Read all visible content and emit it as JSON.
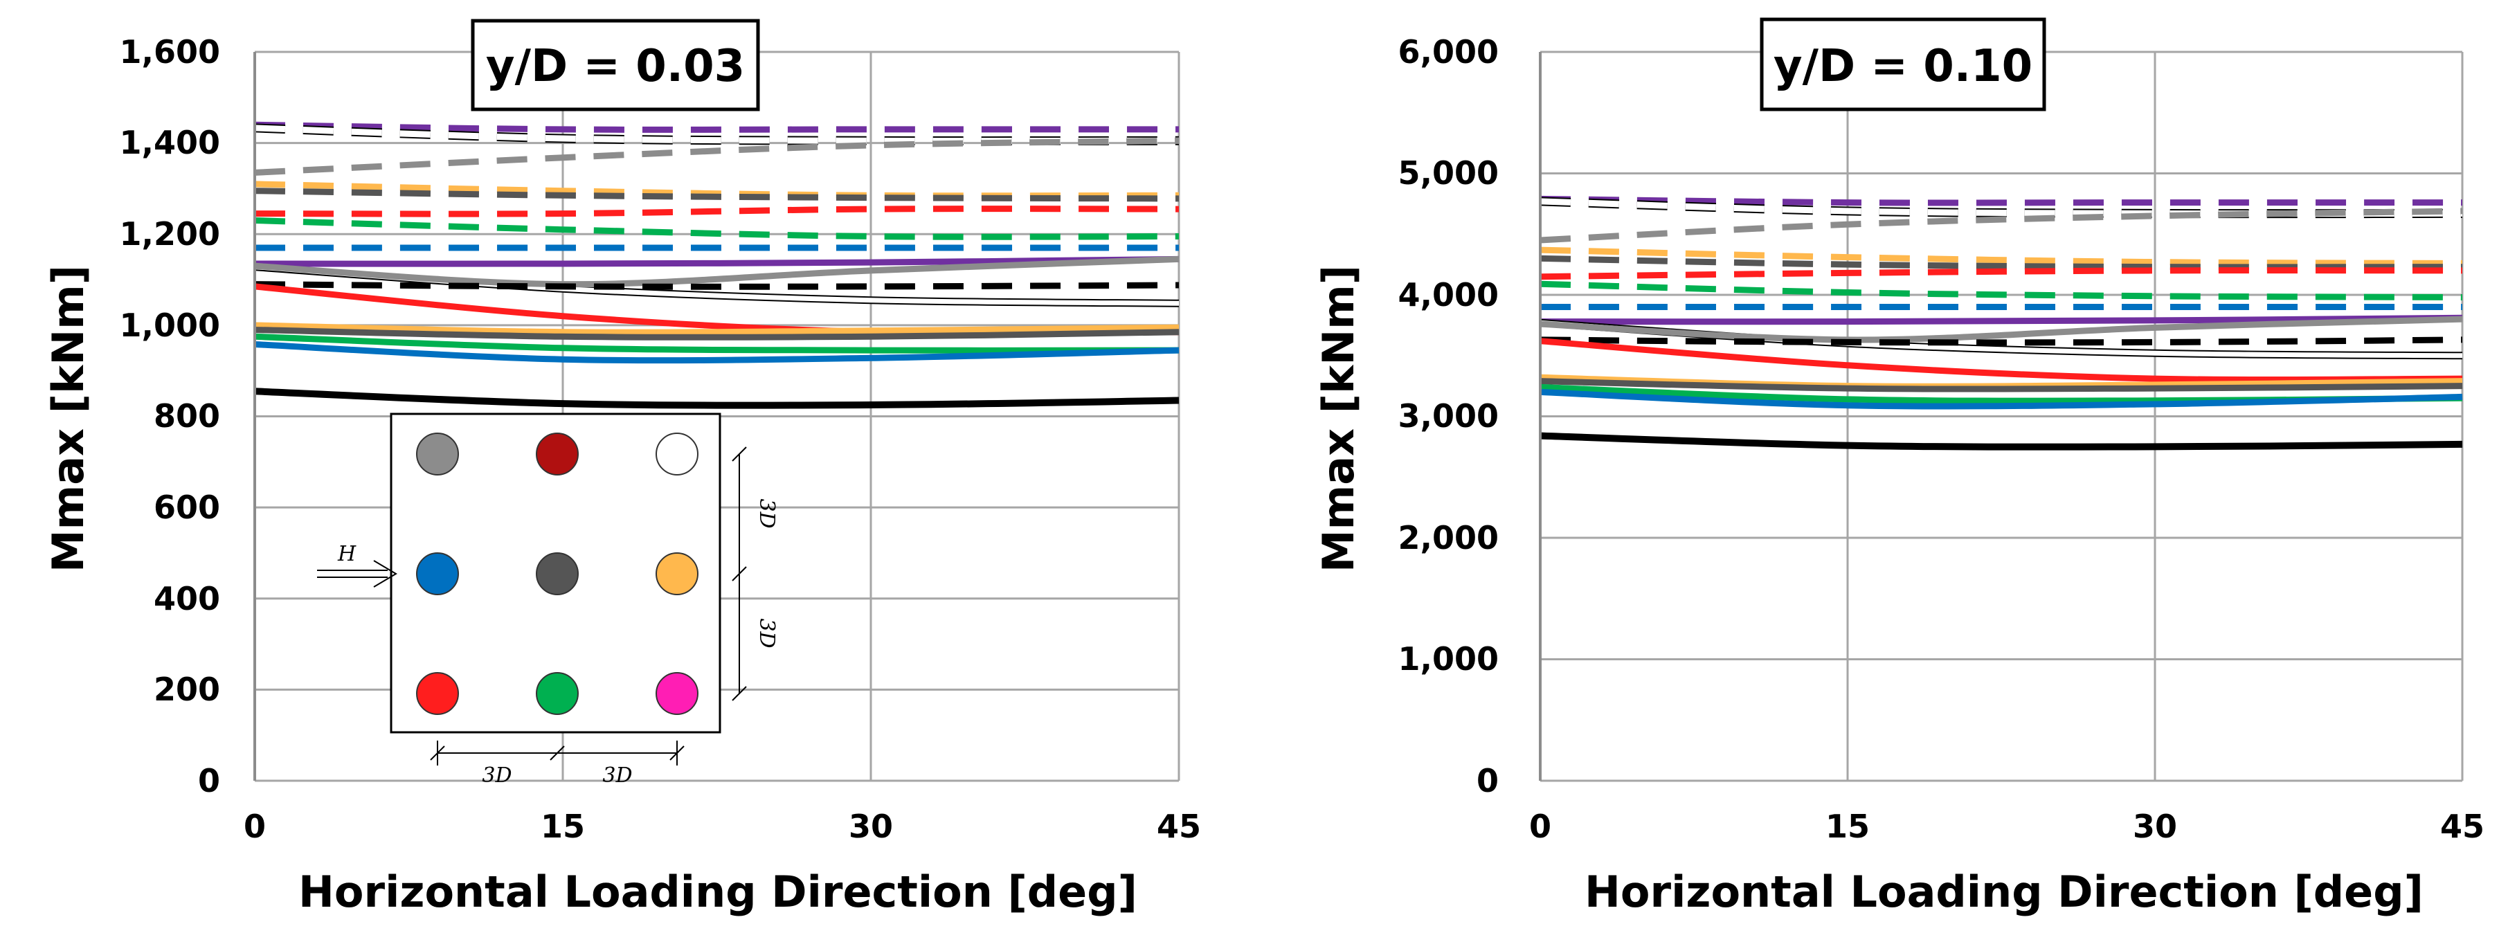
{
  "colors": {
    "purple": "#7030a0",
    "black": "#000000",
    "grey": "#8c8c8c",
    "darkgrey": "#555555",
    "orange": "#ffb84d",
    "red": "#ff1e1e",
    "green": "#00b050",
    "blue": "#0070c0",
    "darkred": "#b01010",
    "magenta": "#ff1eb4"
  },
  "chart_data": [
    {
      "type": "line",
      "title": "y/D = 0.03",
      "xlabel": "Horizontal Loading Direction [deg]",
      "ylabel": "Mmax [kNm]",
      "xlim": [
        0,
        45
      ],
      "ylim": [
        0,
        1600
      ],
      "x_ticks": [
        0,
        15,
        30,
        45
      ],
      "x_tick_labels": [
        "0",
        "15",
        "30",
        "45"
      ],
      "y_ticks": [
        0,
        200,
        400,
        600,
        800,
        1000,
        1200,
        1400,
        1600
      ],
      "y_tick_labels": [
        "0",
        "200",
        "400",
        "600",
        "800",
        "1,000",
        "1,200",
        "1,400",
        "1,600"
      ],
      "grid": true,
      "x": [
        0,
        15,
        30,
        45
      ],
      "series": [
        {
          "name": "dashed-purple",
          "color": "purple",
          "style": "dashed",
          "width": 9,
          "values": [
            1440,
            1430,
            1430,
            1430
          ]
        },
        {
          "name": "dashed-white",
          "color": "white",
          "style": "dashed-outline",
          "width": 9,
          "values": [
            1433,
            1410,
            1405,
            1405
          ]
        },
        {
          "name": "dashed-grey",
          "color": "grey",
          "style": "dashed",
          "width": 9,
          "values": [
            1335,
            1368,
            1395,
            1405
          ]
        },
        {
          "name": "dashed-orange",
          "color": "orange",
          "style": "dashed",
          "width": 9,
          "values": [
            1310,
            1295,
            1285,
            1285
          ]
        },
        {
          "name": "dashed-darkgrey",
          "color": "darkgrey",
          "style": "dashed",
          "width": 9,
          "values": [
            1295,
            1285,
            1280,
            1278
          ]
        },
        {
          "name": "dashed-red",
          "color": "red",
          "style": "dashed",
          "width": 9,
          "values": [
            1245,
            1245,
            1255,
            1255
          ]
        },
        {
          "name": "dashed-green",
          "color": "green",
          "style": "dashed",
          "width": 9,
          "values": [
            1230,
            1210,
            1195,
            1195
          ]
        },
        {
          "name": "dashed-blue",
          "color": "blue",
          "style": "dashed",
          "width": 9,
          "values": [
            1170,
            1170,
            1170,
            1170
          ]
        },
        {
          "name": "solid-purple",
          "color": "purple",
          "style": "solid",
          "width": 9,
          "values": [
            1135,
            1135,
            1138,
            1145
          ]
        },
        {
          "name": "solid-white",
          "color": "white",
          "style": "solid-outline",
          "width": 7,
          "values": [
            1128,
            1080,
            1055,
            1048
          ]
        },
        {
          "name": "solid-grey",
          "color": "grey",
          "style": "solid",
          "width": 9,
          "values": [
            1130,
            1090,
            1120,
            1145
          ]
        },
        {
          "name": "dashed-black",
          "color": "black",
          "style": "dashed",
          "width": 9,
          "values": [
            1090,
            1085,
            1085,
            1088
          ]
        },
        {
          "name": "solid-red",
          "color": "red",
          "style": "solid",
          "width": 9,
          "values": [
            1085,
            1020,
            985,
            985
          ]
        },
        {
          "name": "solid-orange",
          "color": "orange",
          "style": "solid",
          "width": 9,
          "values": [
            1000,
            985,
            988,
            995
          ]
        },
        {
          "name": "solid-darkgrey",
          "color": "darkgrey",
          "style": "solid",
          "width": 9,
          "values": [
            990,
            975,
            975,
            985
          ]
        },
        {
          "name": "solid-green",
          "color": "green",
          "style": "solid",
          "width": 9,
          "values": [
            975,
            950,
            945,
            945
          ]
        },
        {
          "name": "solid-blue",
          "color": "blue",
          "style": "solid",
          "width": 9,
          "values": [
            958,
            925,
            928,
            945
          ]
        },
        {
          "name": "solid-black",
          "color": "black",
          "style": "solid",
          "width": 10,
          "values": [
            855,
            828,
            825,
            835
          ]
        }
      ],
      "inset": {
        "load_label": "H",
        "spacing_label": "3D",
        "piles": [
          {
            "name": "pile-top-left",
            "color": "grey"
          },
          {
            "name": "pile-top-middle",
            "color": "darkred"
          },
          {
            "name": "pile-top-right",
            "color": "white"
          },
          {
            "name": "pile-middle-left",
            "color": "blue"
          },
          {
            "name": "pile-center",
            "color": "darkgrey"
          },
          {
            "name": "pile-middle-right",
            "color": "orange"
          },
          {
            "name": "pile-bottom-left",
            "color": "red"
          },
          {
            "name": "pile-bottom-middle",
            "color": "green"
          },
          {
            "name": "pile-bottom-right",
            "color": "magenta"
          }
        ]
      }
    },
    {
      "type": "line",
      "title": "y/D = 0.10",
      "xlabel": "Horizontal Loading Direction [deg]",
      "ylabel": "Mmax [kNm]",
      "xlim": [
        0,
        45
      ],
      "ylim": [
        0,
        6000
      ],
      "x_ticks": [
        0,
        15,
        30,
        45
      ],
      "x_tick_labels": [
        "0",
        "15",
        "30",
        "45"
      ],
      "y_ticks": [
        0,
        1000,
        2000,
        3000,
        4000,
        5000,
        6000
      ],
      "y_tick_labels": [
        "0",
        "1,000",
        "2,000",
        "3,000",
        "4,000",
        "5,000",
        "6,000"
      ],
      "grid": true,
      "x": [
        0,
        15,
        30,
        45
      ],
      "series": [
        {
          "name": "dashed-purple",
          "color": "purple",
          "style": "dashed",
          "width": 9,
          "values": [
            4790,
            4760,
            4760,
            4760
          ]
        },
        {
          "name": "dashed-white",
          "color": "white",
          "style": "dashed-outline",
          "width": 9,
          "values": [
            4770,
            4690,
            4670,
            4670
          ]
        },
        {
          "name": "dashed-grey",
          "color": "grey",
          "style": "dashed",
          "width": 9,
          "values": [
            4450,
            4580,
            4650,
            4690
          ]
        },
        {
          "name": "dashed-orange",
          "color": "orange",
          "style": "dashed",
          "width": 9,
          "values": [
            4370,
            4310,
            4270,
            4260
          ]
        },
        {
          "name": "dashed-darkgrey",
          "color": "darkgrey",
          "style": "dashed",
          "width": 9,
          "values": [
            4300,
            4250,
            4230,
            4230
          ]
        },
        {
          "name": "dashed-red",
          "color": "red",
          "style": "dashed",
          "width": 9,
          "values": [
            4150,
            4180,
            4200,
            4200
          ]
        },
        {
          "name": "dashed-green",
          "color": "green",
          "style": "dashed",
          "width": 9,
          "values": [
            4090,
            4020,
            3990,
            3980
          ]
        },
        {
          "name": "dashed-blue",
          "color": "blue",
          "style": "dashed",
          "width": 9,
          "values": [
            3900,
            3900,
            3900,
            3900
          ]
        },
        {
          "name": "solid-purple",
          "color": "purple",
          "style": "solid",
          "width": 9,
          "values": [
            3780,
            3780,
            3790,
            3810
          ]
        },
        {
          "name": "solid-white",
          "color": "white",
          "style": "solid-outline",
          "width": 7,
          "values": [
            3770,
            3600,
            3520,
            3500
          ]
        },
        {
          "name": "solid-grey",
          "color": "grey",
          "style": "solid",
          "width": 9,
          "values": [
            3760,
            3630,
            3730,
            3800
          ]
        },
        {
          "name": "dashed-black",
          "color": "black",
          "style": "dashed",
          "width": 9,
          "values": [
            3630,
            3610,
            3610,
            3630
          ]
        },
        {
          "name": "solid-red",
          "color": "red",
          "style": "solid",
          "width": 9,
          "values": [
            3620,
            3420,
            3310,
            3310
          ]
        },
        {
          "name": "solid-orange",
          "color": "orange",
          "style": "solid",
          "width": 9,
          "values": [
            3320,
            3250,
            3260,
            3290
          ]
        },
        {
          "name": "solid-darkgrey",
          "color": "darkgrey",
          "style": "solid",
          "width": 9,
          "values": [
            3290,
            3230,
            3230,
            3250
          ]
        },
        {
          "name": "solid-green",
          "color": "green",
          "style": "solid",
          "width": 9,
          "values": [
            3240,
            3140,
            3130,
            3150
          ]
        },
        {
          "name": "solid-blue",
          "color": "blue",
          "style": "solid",
          "width": 9,
          "values": [
            3200,
            3090,
            3100,
            3160
          ]
        },
        {
          "name": "solid-black",
          "color": "black",
          "style": "solid",
          "width": 10,
          "values": [
            2840,
            2760,
            2750,
            2770
          ]
        }
      ]
    }
  ]
}
